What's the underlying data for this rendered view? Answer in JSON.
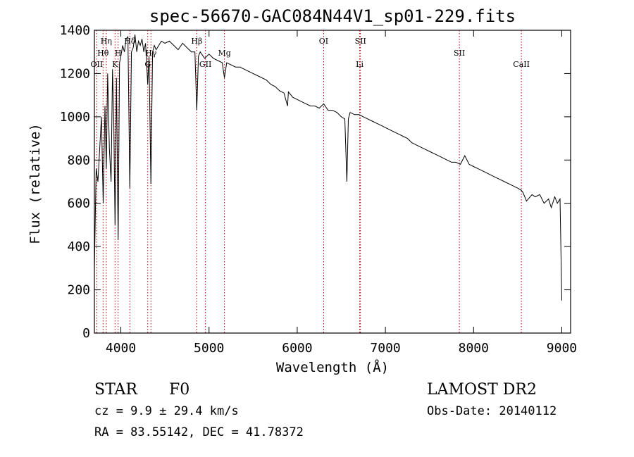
{
  "chart_data": {
    "type": "line",
    "title": "spec-56670-GAC084N44V1_sp01-229.fits",
    "xlabel": "Wavelength (Å)",
    "ylabel": "Flux (relative)",
    "xlim": [
      3700,
      9100
    ],
    "ylim": [
      0,
      1400
    ],
    "x_ticks": [
      4000,
      5000,
      6000,
      7000,
      8000,
      9000
    ],
    "y_ticks": [
      0,
      200,
      400,
      600,
      800,
      1000,
      1200,
      1400
    ],
    "x_tick_labels": [
      "4000",
      "5000",
      "6000",
      "7000",
      "8000",
      "9000"
    ],
    "y_tick_labels": [
      "0",
      "200",
      "400",
      "600",
      "800",
      "1000",
      "1200",
      "1400"
    ],
    "line_color": "#000000",
    "marker_color": "#b00000",
    "grid": false,
    "spectral_lines": [
      {
        "label": "OII",
        "wavelength": 3727,
        "label_row": 3
      },
      {
        "label": "Hθ",
        "wavelength": 3798,
        "label_row": 2
      },
      {
        "label": "Hη",
        "wavelength": 3835,
        "label_row": 1
      },
      {
        "label": "K",
        "wavelength": 3934,
        "label_row": 3
      },
      {
        "label": "H",
        "wavelength": 3969,
        "label_row": 2
      },
      {
        "label": "Hδ",
        "wavelength": 4102,
        "label_row": 1
      },
      {
        "label": "G",
        "wavelength": 4305,
        "label_row": 3
      },
      {
        "label": "Hγ",
        "wavelength": 4341,
        "label_row": 2
      },
      {
        "label": "Hβ",
        "wavelength": 4861,
        "label_row": 1
      },
      {
        "label": "GII",
        "wavelength": 4959,
        "label_row": 3
      },
      {
        "label": "Mg",
        "wavelength": 5175,
        "label_row": 2
      },
      {
        "label": "OI",
        "wavelength": 6300,
        "label_row": 1
      },
      {
        "label": "SII",
        "wavelength": 6717,
        "label_row": 1
      },
      {
        "label": "Li",
        "wavelength": 6708,
        "label_row": 3
      },
      {
        "label": "SII",
        "wavelength": 7839,
        "label_row": 2
      },
      {
        "label": "CaII",
        "wavelength": 8542,
        "label_row": 3
      }
    ],
    "series": [
      {
        "x": [
          3700,
          3720,
          3740,
          3760,
          3780,
          3800,
          3820,
          3835,
          3850,
          3870,
          3889,
          3905,
          3920,
          3934,
          3950,
          3969,
          3985,
          4000,
          4020,
          4040,
          4060,
          4080,
          4102,
          4120,
          4140,
          4160,
          4180,
          4200,
          4220,
          4240,
          4260,
          4280,
          4305,
          4320,
          4341,
          4360,
          4380,
          4400,
          4430,
          4460,
          4500,
          4550,
          4600,
          4650,
          4700,
          4750,
          4800,
          4840,
          4861,
          4880,
          4900,
          4950,
          5000,
          5050,
          5100,
          5150,
          5175,
          5200,
          5250,
          5300,
          5350,
          5400,
          5450,
          5500,
          5550,
          5600,
          5650,
          5700,
          5750,
          5800,
          5850,
          5890,
          5900,
          5950,
          6000,
          6050,
          6100,
          6150,
          6200,
          6250,
          6300,
          6350,
          6400,
          6450,
          6500,
          6540,
          6563,
          6580,
          6600,
          6650,
          6700,
          6750,
          6800,
          6850,
          6900,
          6950,
          7000,
          7050,
          7100,
          7150,
          7200,
          7250,
          7300,
          7350,
          7400,
          7450,
          7500,
          7550,
          7600,
          7650,
          7700,
          7750,
          7800,
          7850,
          7900,
          7950,
          8000,
          8050,
          8100,
          8150,
          8200,
          8250,
          8300,
          8350,
          8400,
          8450,
          8500,
          8542,
          8560,
          8600,
          8662,
          8700,
          8750,
          8800,
          8850,
          8880,
          8920,
          8950,
          8980,
          9000
        ],
        "y": [
          300,
          760,
          700,
          850,
          1000,
          600,
          1050,
          760,
          1200,
          850,
          700,
          1220,
          980,
          500,
          1180,
          430,
          1250,
          1280,
          1330,
          1300,
          1360,
          1370,
          670,
          1300,
          1320,
          1380,
          1300,
          1350,
          1330,
          1360,
          1300,
          1340,
          1150,
          1280,
          690,
          1300,
          1330,
          1310,
          1330,
          1350,
          1340,
          1350,
          1330,
          1310,
          1340,
          1320,
          1300,
          1300,
          1030,
          1280,
          1300,
          1270,
          1290,
          1270,
          1260,
          1250,
          1180,
          1250,
          1240,
          1230,
          1230,
          1220,
          1210,
          1200,
          1190,
          1180,
          1170,
          1150,
          1140,
          1120,
          1110,
          1050,
          1115,
          1090,
          1080,
          1070,
          1060,
          1050,
          1050,
          1040,
          1060,
          1030,
          1030,
          1020,
          1000,
          990,
          700,
          990,
          1020,
          1010,
          1010,
          1000,
          990,
          980,
          970,
          960,
          950,
          940,
          930,
          920,
          910,
          900,
          880,
          870,
          860,
          850,
          840,
          830,
          820,
          810,
          800,
          790,
          790,
          780,
          820,
          780,
          770,
          760,
          750,
          740,
          730,
          720,
          710,
          700,
          690,
          680,
          670,
          660,
          650,
          610,
          640,
          630,
          640,
          600,
          620,
          580,
          630,
          600,
          620,
          150
        ]
      }
    ]
  },
  "info": {
    "object_class": "STAR",
    "subclass": "F0",
    "survey": "LAMOST DR2",
    "redshift_text": "cz = 9.9 ± 29.4 km/s",
    "obs_date_text": "Obs-Date: 20140112",
    "coords_text": "RA =  83.55142, DEC =  41.78372"
  }
}
